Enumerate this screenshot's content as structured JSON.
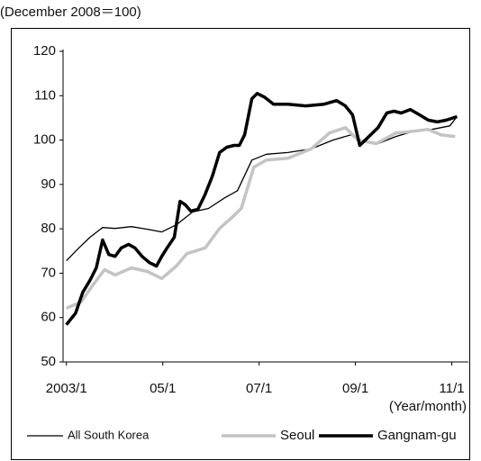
{
  "chart_data": {
    "type": "line",
    "subtitle": "(December 2008＝100)",
    "x_label": "(Year/month)",
    "xlim": [
      2002.93,
      2011.27
    ],
    "xticks": [
      {
        "value": 2003,
        "label": "2003/1"
      },
      {
        "value": 2005,
        "label": "05/1"
      },
      {
        "value": 2007,
        "label": "07/1"
      },
      {
        "value": 2009,
        "label": "09/1"
      },
      {
        "value": 2011,
        "label": "11/1"
      }
    ],
    "ylim": [
      50,
      120
    ],
    "yticks": [
      50,
      60,
      70,
      80,
      90,
      100,
      110,
      120
    ],
    "grid": false,
    "legend": "bottom",
    "series": [
      {
        "name": "All South Korea",
        "color": "#000000",
        "width": 1.3,
        "x": [
          2003.0,
          2003.26,
          2003.49,
          2003.75,
          2004.01,
          2004.35,
          2004.68,
          2004.98,
          2005.28,
          2005.62,
          2005.95,
          2006.29,
          2006.55,
          2006.85,
          2007.15,
          2007.6,
          2008.08,
          2008.53,
          2008.91,
          2009.09,
          2009.47,
          2009.84,
          2010.21,
          2010.59,
          2010.96,
          2011.11
        ],
        "values": [
          72.8,
          75.7,
          78.1,
          80.3,
          80.1,
          80.5,
          79.9,
          79.3,
          80.9,
          83.8,
          84.6,
          87.0,
          88.6,
          95.5,
          96.8,
          97.2,
          98.0,
          100.0,
          101.2,
          99.6,
          99.2,
          100.8,
          102.0,
          102.4,
          103.2,
          105.3
        ]
      },
      {
        "name": "Seoul",
        "color": "#c4c4c4",
        "width": 3.5,
        "x": [
          2003.0,
          2003.3,
          2003.56,
          2003.79,
          2004.01,
          2004.35,
          2004.68,
          2004.98,
          2005.28,
          2005.5,
          2005.88,
          2006.18,
          2006.4,
          2006.63,
          2006.89,
          2007.15,
          2007.6,
          2008.08,
          2008.46,
          2008.79,
          2009.06,
          2009.43,
          2009.84,
          2010.21,
          2010.51,
          2010.77,
          2011.07
        ],
        "values": [
          62.1,
          63.5,
          67.5,
          70.8,
          69.6,
          71.2,
          70.4,
          68.8,
          71.6,
          74.4,
          75.7,
          80.1,
          82.2,
          84.6,
          93.9,
          95.5,
          95.9,
          98.0,
          101.6,
          102.8,
          100.0,
          99.2,
          101.6,
          102.0,
          102.4,
          101.2,
          100.8
        ]
      },
      {
        "name": "Gangnam-gu",
        "color": "#000000",
        "width": 3.5,
        "x": [
          2003.0,
          2003.19,
          2003.34,
          2003.49,
          2003.62,
          2003.75,
          2003.88,
          2004.01,
          2004.14,
          2004.29,
          2004.42,
          2004.57,
          2004.72,
          2004.87,
          2004.98,
          2005.09,
          2005.24,
          2005.36,
          2005.47,
          2005.58,
          2005.73,
          2005.88,
          2006.03,
          2006.18,
          2006.33,
          2006.48,
          2006.59,
          2006.7,
          2006.85,
          2006.96,
          2007.11,
          2007.3,
          2007.6,
          2007.97,
          2008.35,
          2008.61,
          2008.79,
          2008.94,
          2009.09,
          2009.28,
          2009.47,
          2009.65,
          2009.8,
          2009.95,
          2010.14,
          2010.33,
          2010.51,
          2010.7,
          2010.89,
          2011.11
        ],
        "values": [
          58.4,
          61.0,
          65.7,
          68.4,
          71.2,
          77.5,
          74.2,
          73.8,
          75.7,
          76.5,
          75.7,
          73.8,
          72.4,
          71.6,
          73.8,
          75.7,
          78.1,
          86.2,
          85.4,
          84.0,
          84.4,
          87.8,
          91.9,
          97.2,
          98.4,
          98.8,
          98.8,
          101.2,
          109.3,
          110.5,
          109.7,
          108.1,
          108.1,
          107.7,
          108.1,
          108.9,
          107.7,
          105.7,
          98.8,
          100.8,
          102.8,
          106.1,
          106.5,
          106.1,
          106.9,
          105.7,
          104.5,
          104.1,
          104.5,
          105.3
        ]
      }
    ]
  }
}
